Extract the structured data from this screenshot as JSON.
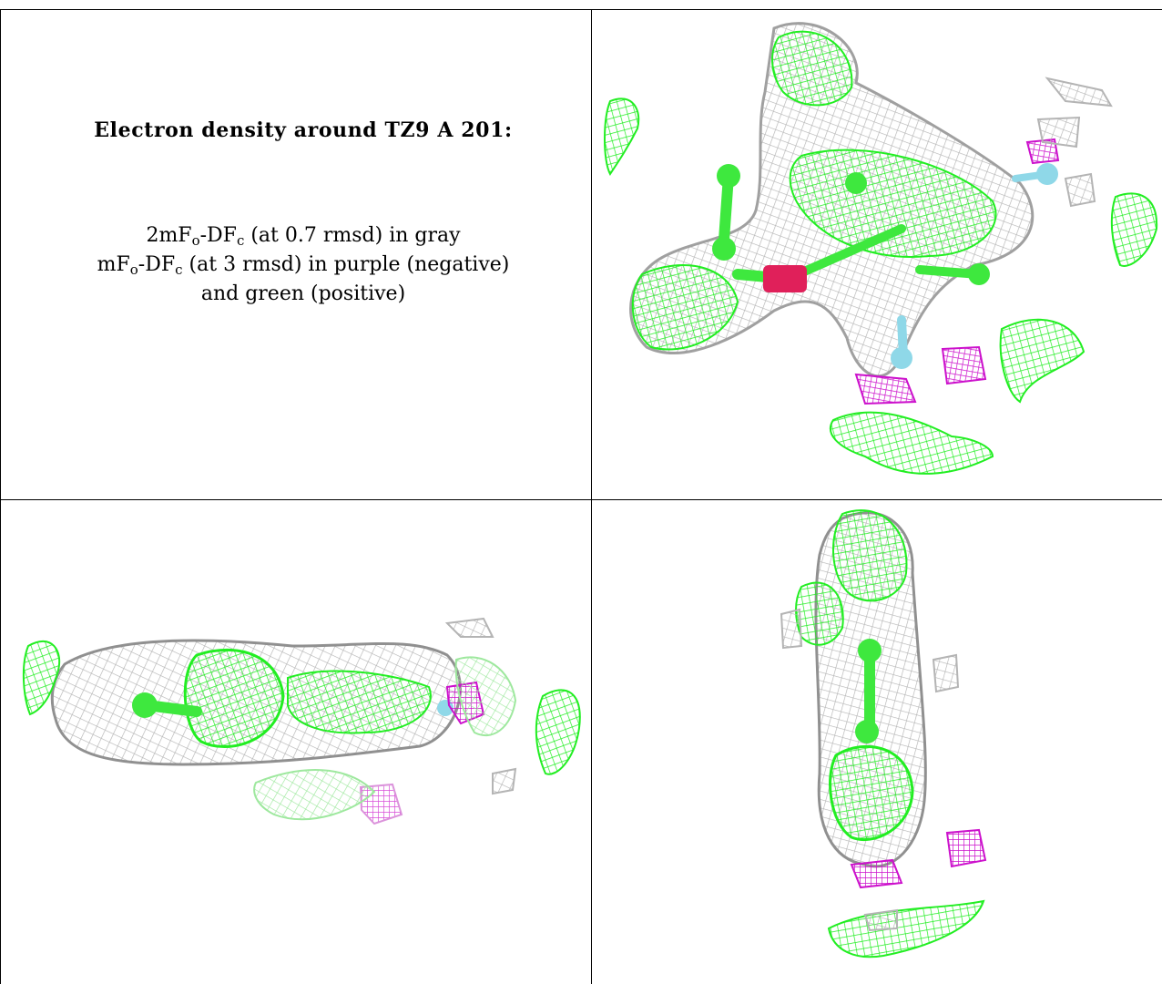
{
  "caption": {
    "title": "Electron density around TZ9 A 201:",
    "line1": {
      "a": "2mF",
      "a_sub": "o",
      "b": "-DF",
      "b_sub": "c",
      "rest": " (at 0.7 rmsd) in gray"
    },
    "line2": {
      "a": "mF",
      "a_sub": "o",
      "b": "-DF",
      "b_sub": "c",
      "rest": " (at 3 rmsd) in purple (negative)"
    },
    "line3": "and green (positive)"
  },
  "colors": {
    "gray_map": "#b4b4b4",
    "positive_map": "#22ee22",
    "negative_map": "#cc11cc",
    "carbon": "#3ee83e",
    "oxygen": "#e0205a",
    "nitrogen": "#8fd8e8",
    "border": "#000000"
  },
  "views": [
    {
      "name": "top-view"
    },
    {
      "name": "side-view"
    },
    {
      "name": "end-view"
    }
  ]
}
